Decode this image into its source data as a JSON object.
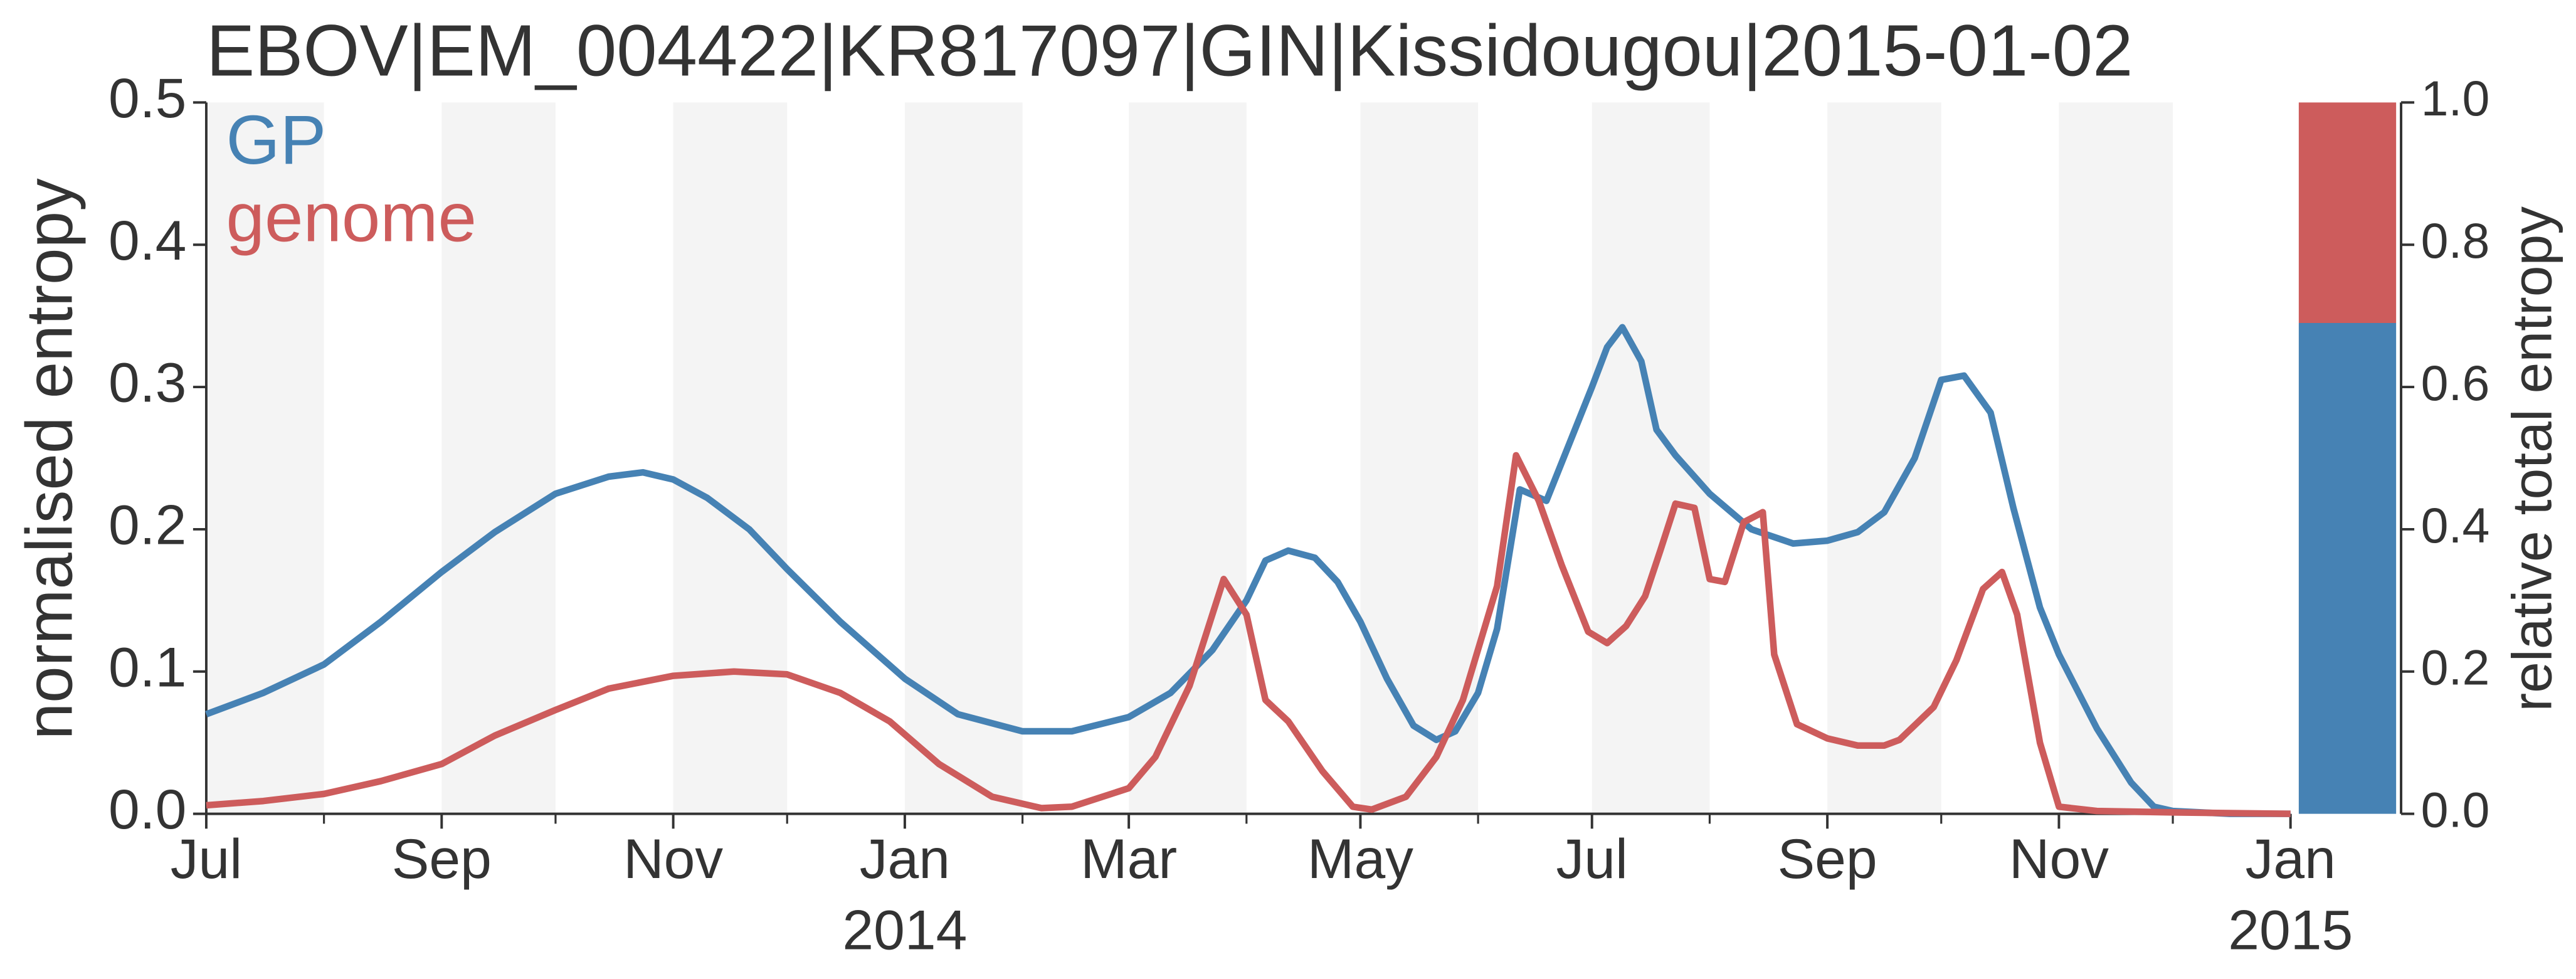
{
  "chart_data": {
    "type": "line",
    "title": "EBOV|EM_004422|KR817097|GIN|Kissidougou|2015-01-02",
    "ylabel": "normalised entropy",
    "y2label": "relative total entropy",
    "xlim": [
      "2013-07-01",
      "2015-01-01"
    ],
    "xticks": [
      {
        "value": "2013-07-01",
        "label": "Jul"
      },
      {
        "value": "2013-09-01",
        "label": "Sep"
      },
      {
        "value": "2013-11-01",
        "label": "Nov"
      },
      {
        "value": "2014-01-01",
        "label": "Jan"
      },
      {
        "value": "2014-03-01",
        "label": "Mar"
      },
      {
        "value": "2014-05-01",
        "label": "May"
      },
      {
        "value": "2014-07-01",
        "label": "Jul"
      },
      {
        "value": "2014-09-01",
        "label": "Sep"
      },
      {
        "value": "2014-11-01",
        "label": "Nov"
      },
      {
        "value": "2015-01-01",
        "label": "Jan"
      }
    ],
    "xminorticks": [
      "2013-08-01",
      "2013-10-01",
      "2013-12-01",
      "2014-02-01",
      "2014-04-01",
      "2014-06-01",
      "2014-08-01",
      "2014-10-01",
      "2014-12-01"
    ],
    "xyearticks": [
      {
        "value": "2014-01-01",
        "label": "2014"
      },
      {
        "value": "2015-01-01",
        "label": "2015"
      }
    ],
    "ylim": [
      0,
      0.5
    ],
    "yticks": [
      {
        "value": 0,
        "label": "0.0"
      },
      {
        "value": 0.1,
        "label": "0.1"
      },
      {
        "value": 0.2,
        "label": "0.2"
      },
      {
        "value": 0.3,
        "label": "0.3"
      },
      {
        "value": 0.4,
        "label": "0.4"
      },
      {
        "value": 0.5,
        "label": "0.5"
      }
    ],
    "y2lim": [
      0,
      1
    ],
    "y2ticks": [
      {
        "value": 0,
        "label": "0.0"
      },
      {
        "value": 0.2,
        "label": "0.2"
      },
      {
        "value": 0.4,
        "label": "0.4"
      },
      {
        "value": 0.6,
        "label": "0.6"
      },
      {
        "value": 0.8,
        "label": "0.8"
      },
      {
        "value": 1,
        "label": "1.0"
      }
    ],
    "series": [
      {
        "name": "GP",
        "color": "#4682b4",
        "stacked_value": 0.69,
        "x": [
          "2013-07-01",
          "2013-07-16",
          "2013-08-01",
          "2013-08-16",
          "2013-09-01",
          "2013-09-15",
          "2013-10-01",
          "2013-10-15",
          "2013-10-24",
          "2013-11-01",
          "2013-11-10",
          "2013-11-21",
          "2013-12-01",
          "2013-12-15",
          "2014-01-01",
          "2014-01-15",
          "2014-02-01",
          "2014-02-14",
          "2014-03-01",
          "2014-03-12",
          "2014-03-23",
          "2014-04-01",
          "2014-04-06",
          "2014-04-12",
          "2014-04-19",
          "2014-04-25",
          "2014-05-01",
          "2014-05-08",
          "2014-05-15",
          "2014-05-21",
          "2014-05-26",
          "2014-06-01",
          "2014-06-06",
          "2014-06-12",
          "2014-06-19",
          "2014-06-25",
          "2014-07-01",
          "2014-07-05",
          "2014-07-09",
          "2014-07-14",
          "2014-07-18",
          "2014-07-23",
          "2014-08-01",
          "2014-08-12",
          "2014-08-23",
          "2014-09-01",
          "2014-09-09",
          "2014-09-16",
          "2014-09-24",
          "2014-10-01",
          "2014-10-07",
          "2014-10-14",
          "2014-10-20",
          "2014-10-27",
          "2014-11-01",
          "2014-11-11",
          "2014-11-20",
          "2014-11-26",
          "2014-12-01",
          "2014-12-16",
          "2015-01-01"
        ],
        "values": [
          0.07,
          0.085,
          0.105,
          0.135,
          0.17,
          0.198,
          0.225,
          0.237,
          0.24,
          0.235,
          0.222,
          0.2,
          0.172,
          0.135,
          0.095,
          0.07,
          0.058,
          0.058,
          0.068,
          0.085,
          0.115,
          0.15,
          0.178,
          0.185,
          0.18,
          0.163,
          0.135,
          0.095,
          0.062,
          0.052,
          0.058,
          0.085,
          0.13,
          0.228,
          0.22,
          0.26,
          0.3,
          0.328,
          0.342,
          0.318,
          0.27,
          0.252,
          0.225,
          0.2,
          0.19,
          0.192,
          0.198,
          0.212,
          0.25,
          0.305,
          0.308,
          0.282,
          0.215,
          0.145,
          0.112,
          0.06,
          0.022,
          0.005,
          0.002,
          0.0,
          0.0
        ]
      },
      {
        "name": "genome",
        "color": "#cd5c5c",
        "stacked_value": 0.31,
        "x": [
          "2013-07-01",
          "2013-07-16",
          "2013-08-01",
          "2013-08-16",
          "2013-09-01",
          "2013-09-15",
          "2013-10-01",
          "2013-10-15",
          "2013-11-01",
          "2013-11-17",
          "2013-12-01",
          "2013-12-15",
          "2013-12-28",
          "2014-01-10",
          "2014-01-24",
          "2014-02-06",
          "2014-02-14",
          "2014-03-01",
          "2014-03-08",
          "2014-03-17",
          "2014-03-26",
          "2014-04-01",
          "2014-04-06",
          "2014-04-12",
          "2014-04-21",
          "2014-04-29",
          "2014-05-04",
          "2014-05-13",
          "2014-05-21",
          "2014-05-28",
          "2014-06-06",
          "2014-06-11",
          "2014-06-17",
          "2014-06-23",
          "2014-06-30",
          "2014-07-05",
          "2014-07-10",
          "2014-07-15",
          "2014-07-19",
          "2014-07-23",
          "2014-07-28",
          "2014-08-01",
          "2014-08-05",
          "2014-08-10",
          "2014-08-15",
          "2014-08-18",
          "2014-08-24",
          "2014-09-01",
          "2014-09-09",
          "2014-09-16",
          "2014-09-20",
          "2014-09-29",
          "2014-10-05",
          "2014-10-12",
          "2014-10-17",
          "2014-10-21",
          "2014-10-27",
          "2014-11-01",
          "2014-11-11",
          "2014-12-01",
          "2015-01-01"
        ],
        "values": [
          0.006,
          0.009,
          0.014,
          0.023,
          0.035,
          0.055,
          0.073,
          0.088,
          0.097,
          0.1,
          0.098,
          0.085,
          0.065,
          0.035,
          0.012,
          0.004,
          0.005,
          0.018,
          0.04,
          0.09,
          0.165,
          0.14,
          0.08,
          0.065,
          0.03,
          0.005,
          0.003,
          0.012,
          0.04,
          0.08,
          0.16,
          0.252,
          0.22,
          0.175,
          0.128,
          0.12,
          0.132,
          0.153,
          0.185,
          0.218,
          0.215,
          0.165,
          0.163,
          0.205,
          0.212,
          0.112,
          0.063,
          0.053,
          0.048,
          0.048,
          0.052,
          0.075,
          0.108,
          0.158,
          0.17,
          0.14,
          0.05,
          0.005,
          0.002,
          0.001,
          0.0
        ]
      }
    ]
  }
}
